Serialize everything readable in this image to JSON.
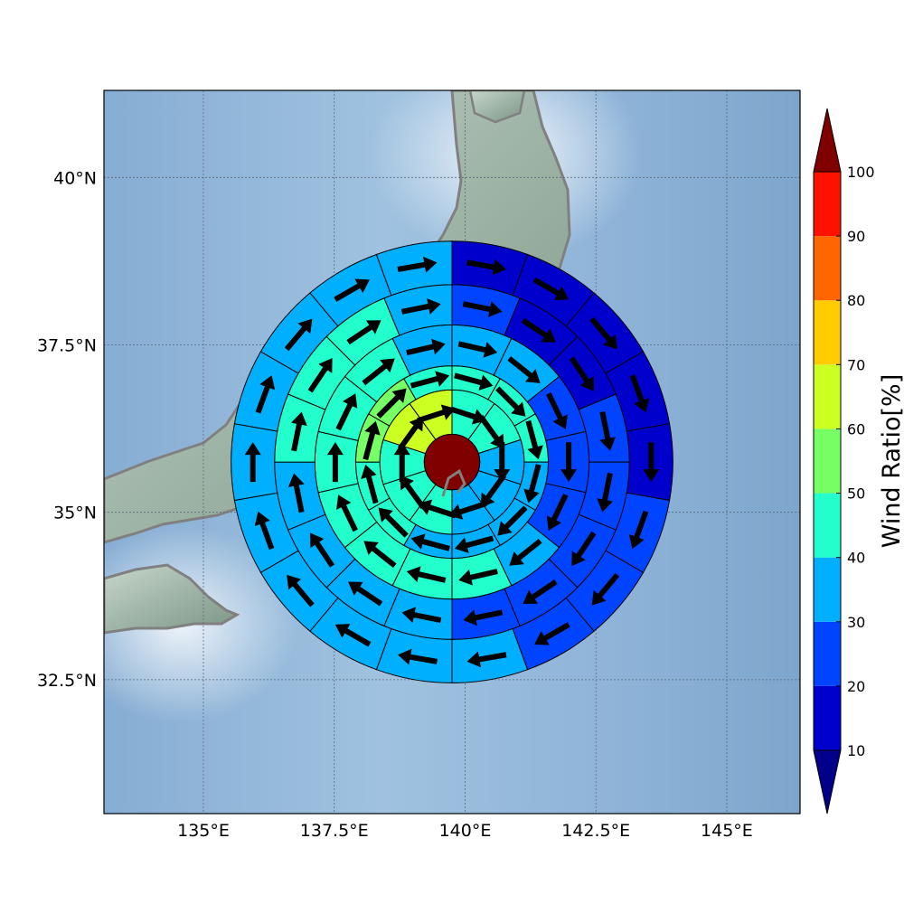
{
  "map": {
    "lon_range": [
      133.1,
      146.4
    ],
    "lat_range": [
      30.5,
      41.3
    ],
    "x_ticks": [
      {
        "value": 135,
        "label": "135°E"
      },
      {
        "value": 137.5,
        "label": "137.5°E"
      },
      {
        "value": 140,
        "label": "140°E"
      },
      {
        "value": 142.5,
        "label": "142.5°E"
      },
      {
        "value": 145,
        "label": "145°E"
      }
    ],
    "y_ticks": [
      {
        "value": 40,
        "label": "40°N"
      },
      {
        "value": 37.5,
        "label": "37.5°N"
      },
      {
        "value": 35,
        "label": "35°N"
      },
      {
        "value": 32.5,
        "label": "32.5°N"
      }
    ],
    "grid": true,
    "background": "shaded-relief",
    "coastline_color": "#808080"
  },
  "polar_grid": {
    "center": {
      "lon": 139.75,
      "lat": 35.75
    },
    "rings_deg": [
      0.53,
      1.38,
      1.84,
      2.62,
      3.39,
      4.22
    ],
    "center_value": 100,
    "sectors": [
      [
        40,
        40,
        30,
        30,
        30,
        40,
        40,
        40,
        60,
        60
      ],
      [
        40,
        40,
        40,
        30,
        30,
        30,
        30,
        40,
        40,
        50,
        50,
        40
      ],
      [
        30,
        30,
        20,
        20,
        20,
        30,
        40,
        40,
        40,
        40,
        40,
        40,
        40,
        30
      ],
      [
        20,
        10,
        10,
        20,
        20,
        20,
        20,
        20,
        30,
        30,
        30,
        30,
        40,
        40,
        40,
        30
      ],
      [
        10,
        10,
        10,
        10,
        10,
        20,
        20,
        20,
        30,
        30,
        30,
        30,
        30,
        30,
        30,
        30,
        30,
        30
      ],
      [
        10,
        10,
        10,
        10,
        10,
        10,
        10,
        10,
        20,
        20,
        20,
        30,
        30,
        30,
        30,
        30,
        30,
        30,
        30,
        30
      ]
    ]
  },
  "colorbar": {
    "title": "Wind Ratio[%]",
    "ticks": [
      "10",
      "20",
      "30",
      "40",
      "50",
      "60",
      "70",
      "80",
      "90",
      "100"
    ],
    "bounds": [
      10,
      20,
      30,
      40,
      50,
      60,
      70,
      80,
      90,
      100
    ],
    "colors": [
      "#0000cc",
      "#0044ff",
      "#00b0ff",
      "#22ffcc",
      "#77ff66",
      "#ccff22",
      "#ffcc00",
      "#ff6600",
      "#ff1100"
    ],
    "under_color": "#00008b",
    "over_color": "#800000"
  }
}
